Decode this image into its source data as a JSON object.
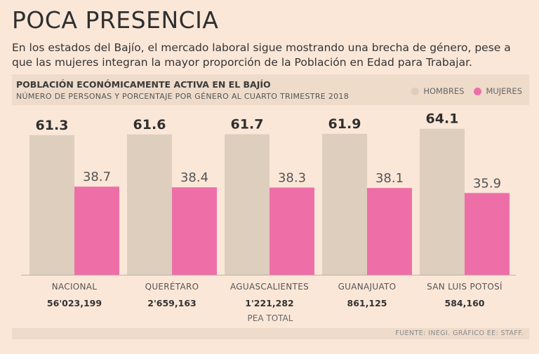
{
  "headline": "POCA PRESENCIA",
  "intro": "En los estados del Bajío, el mercado laboral sigue mostrando una brecha de género, pese a que las mujeres integran la mayor proporción de la Población en Edad para Trabajar.",
  "source": "FUENTE: INEGI. GRÁFICO EE: STAFF.",
  "colors": {
    "background": "#fbe7d8",
    "hombres": "#ddcebd",
    "mujeres": "#ee6fa8",
    "banner": "#eedbca"
  },
  "chart_data": {
    "type": "bar",
    "title": "POBLACIÓN ECONÓMICAMENTE ACTIVA EN EL BAJÍO",
    "subtitle": "NÚMERO DE PERSONAS Y PORCENTAJE POR GÉNERO AL CUARTO TRIMESTRE 2018",
    "categories": [
      "NACIONAL",
      "QUERÉTARO",
      "AGUASCALIENTES",
      "GUANAJUATO",
      "SAN LUIS POTOSÍ"
    ],
    "series": [
      {
        "name": "HOMBRES",
        "values": [
          61.3,
          61.6,
          61.7,
          61.9,
          64.1
        ],
        "color": "#ddcebd"
      },
      {
        "name": "MUJERES",
        "values": [
          38.7,
          38.4,
          38.3,
          38.1,
          35.9
        ],
        "color": "#ee6fa8"
      }
    ],
    "value_labels": {
      "HOMBRES": [
        "61.3",
        "61.6",
        "61.7",
        "61.9",
        "64.1"
      ],
      "MUJERES": [
        "38.7",
        "38.4",
        "38.3",
        "38.1",
        "35.9"
      ]
    },
    "totals": [
      "56'023,199",
      "2'659,163",
      "1'221,282",
      "861,125",
      "584,160"
    ],
    "totals_label": "PEA TOTAL",
    "ylim": [
      0,
      70
    ],
    "legend": "top-right",
    "grid": false
  }
}
